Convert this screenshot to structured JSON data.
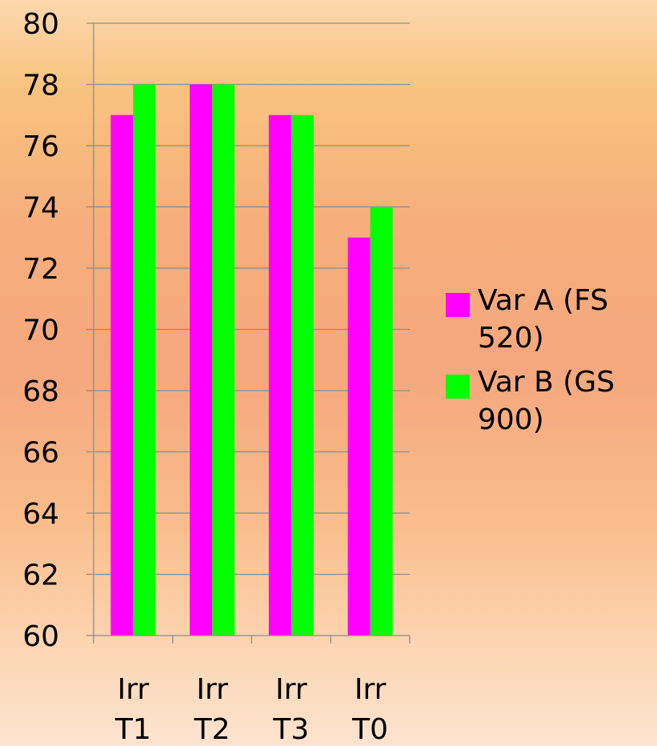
{
  "chart_data": {
    "type": "bar",
    "categories": [
      "Irr T1",
      "Irr T2",
      "Irr T3",
      "Irr T0"
    ],
    "series": [
      {
        "name": "Var A (FS 520)",
        "values": [
          77,
          78,
          77,
          73
        ],
        "color": "#ff00ff"
      },
      {
        "name": "Var B (GS 900)",
        "values": [
          78,
          78,
          77,
          74
        ],
        "color": "#00ff00"
      }
    ],
    "yticks": [
      "60",
      "62",
      "64",
      "66",
      "68",
      "70",
      "72",
      "74",
      "76",
      "78",
      "80"
    ],
    "ylim": [
      60,
      80
    ],
    "grid": true,
    "legend_position": "right",
    "title": "",
    "xlabel": "",
    "ylabel": ""
  }
}
